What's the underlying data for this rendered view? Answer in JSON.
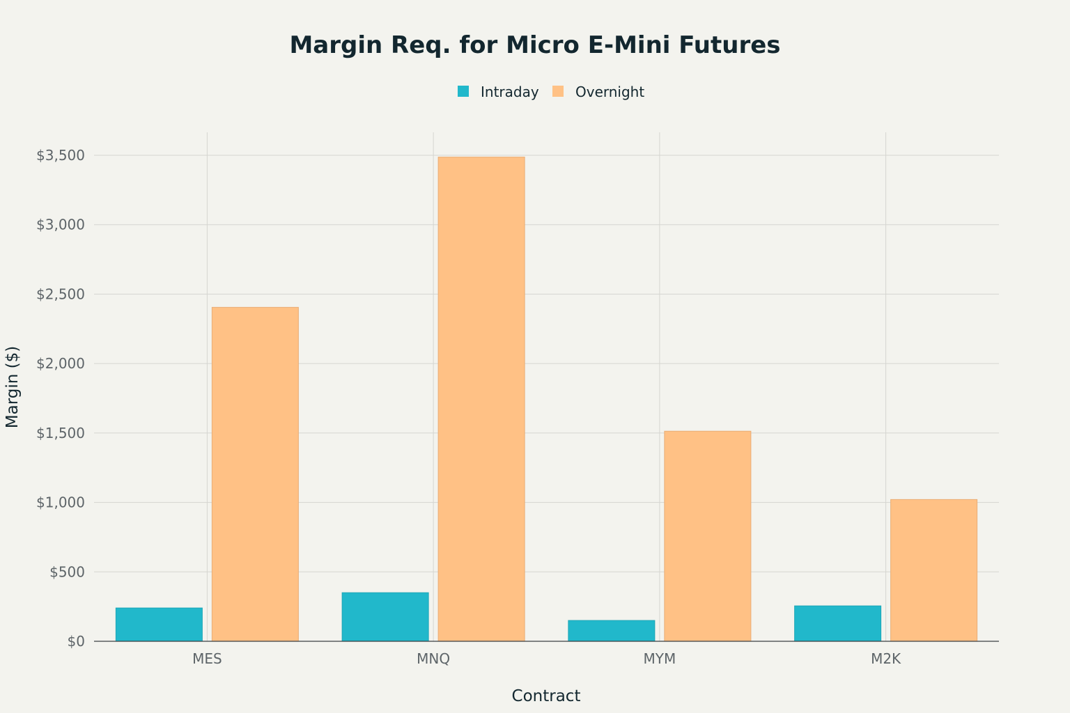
{
  "chart_data": {
    "type": "bar",
    "title": "Margin Req. for Micro E-Mini Futures",
    "xlabel": "Contract",
    "ylabel": "Margin ($)",
    "categories": [
      "MES",
      "MNQ",
      "MYM",
      "M2K"
    ],
    "series": [
      {
        "name": "Intraday",
        "values": [
          240,
          350,
          150,
          255
        ],
        "color": "#21b8cb"
      },
      {
        "name": "Overnight",
        "values": [
          2405,
          3487,
          1513,
          1021
        ],
        "color": "#ffc185"
      }
    ],
    "ylim": [
      0,
      3650
    ],
    "yticks": [
      0,
      500,
      1000,
      1500,
      2000,
      2500,
      3000,
      3500
    ],
    "ytick_labels": [
      "$0",
      "$500",
      "$1,000",
      "$1,500",
      "$2,000",
      "$2,500",
      "$3,000",
      "$3,500"
    ],
    "grid": true,
    "legend_position": "top-center"
  }
}
